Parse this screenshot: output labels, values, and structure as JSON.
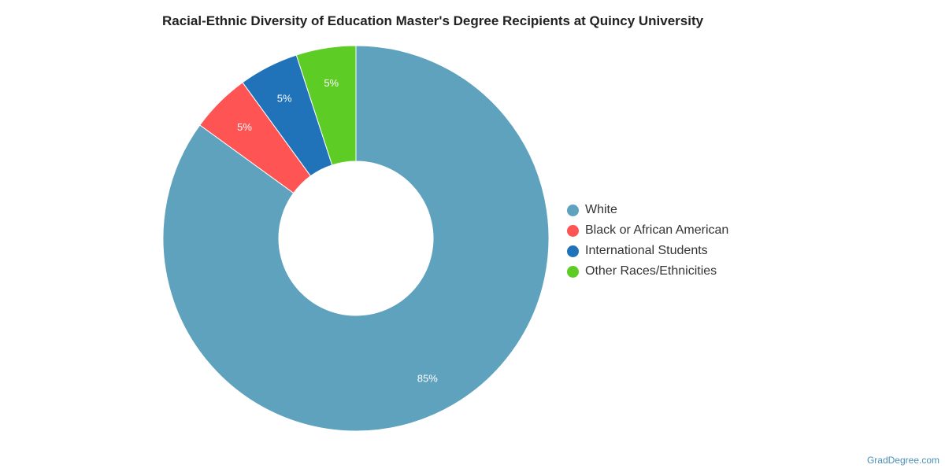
{
  "chart_data": {
    "type": "pie",
    "title": "Racial-Ethnic Diversity of Education Master's Degree Recipients at Quincy University",
    "categories": [
      "White",
      "Black or African American",
      "International Students",
      "Other Races/Ethnicities"
    ],
    "values": [
      85,
      5,
      5,
      5
    ],
    "value_labels": [
      "85%",
      "5%",
      "5%",
      "5%"
    ],
    "colors": [
      "#5ea2be",
      "#fe5454",
      "#2073b9",
      "#5dcd25"
    ],
    "legend_position": "right"
  },
  "watermark": "GradDegree.com"
}
